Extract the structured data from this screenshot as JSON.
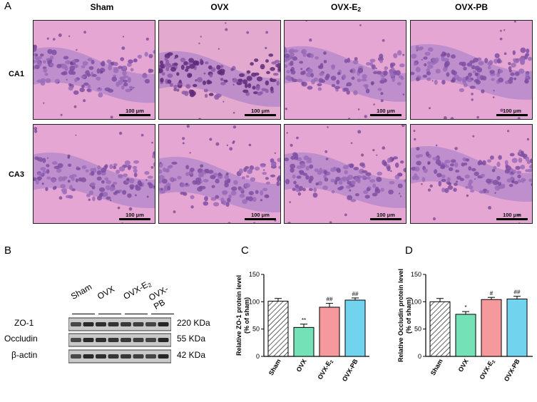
{
  "panel_letters": {
    "A": "A",
    "B": "B",
    "C": "C",
    "D": "D"
  },
  "histology": {
    "columns": [
      "Sham",
      "OVX",
      "OVX-E",
      "OVX-PB"
    ],
    "column_sub": {
      "OVX-E": "2"
    },
    "rows": [
      "CA1",
      "CA3"
    ],
    "scale_bar_label": "100 μm"
  },
  "western_blot": {
    "lane_groups": [
      "Sham",
      "OVX",
      "OVX-E",
      "OVX-PB"
    ],
    "lane_group_sub": {
      "OVX-E": "2"
    },
    "proteins": [
      {
        "name": "ZO-1",
        "kda": "220 KDa"
      },
      {
        "name": "Occludin",
        "kda": "55 KDa"
      },
      {
        "name": "β-actin",
        "kda": "42 KDa"
      }
    ]
  },
  "chart_data": [
    {
      "type": "bar",
      "panel": "C",
      "categories": [
        "Sham",
        "OVX",
        "OVX-E2",
        "OVX-PB"
      ],
      "category_labels": [
        "Sham",
        "OVX",
        "OVX-E",
        "OVX-PB"
      ],
      "values": [
        101,
        53,
        90,
        103
      ],
      "errors": [
        5,
        6,
        7,
        4
      ],
      "annotations": [
        "",
        "**",
        "##",
        "##"
      ],
      "ylabel_line1": "Relative ZO-1 protein level",
      "ylabel_line2": "(% of sham)",
      "ylim": [
        0,
        150
      ],
      "yticks": [
        "0",
        "50",
        "100",
        "150"
      ],
      "colors": [
        "hatch",
        "#74e2b6",
        "#f6999c",
        "#72d3ee"
      ]
    },
    {
      "type": "bar",
      "panel": "D",
      "categories": [
        "Sham",
        "OVX",
        "OVX-E2",
        "OVX-PB"
      ],
      "category_labels": [
        "Sham",
        "OVX",
        "OVX-E",
        "OVX-PB"
      ],
      "values": [
        100,
        77,
        104,
        105
      ],
      "errors": [
        6,
        5,
        4,
        5
      ],
      "annotations": [
        "",
        "*",
        "#",
        "##"
      ],
      "ylabel_line1": "Relative Occludin protein level",
      "ylabel_line2": "(% of sham)",
      "ylim": [
        0,
        150
      ],
      "yticks": [
        "0",
        "50",
        "100",
        "150"
      ],
      "colors": [
        "hatch",
        "#74e2b6",
        "#f6999c",
        "#72d3ee"
      ]
    }
  ]
}
